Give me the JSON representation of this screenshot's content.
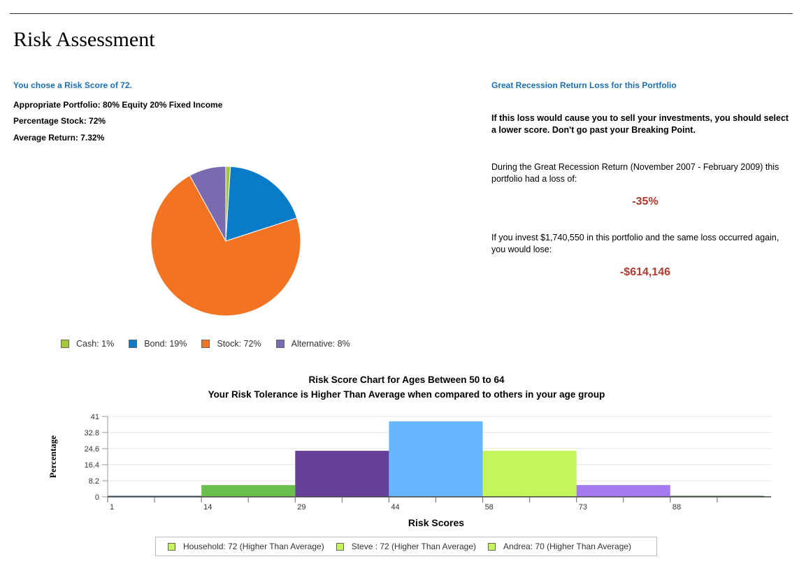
{
  "page": {
    "title": "Risk Assessment"
  },
  "left": {
    "risk_choice": "You chose a Risk Score of 72.",
    "portfolio": "Appropriate Portfolio: 80% Equity 20% Fixed Income",
    "percentage_stock": "Percentage Stock: 72%",
    "average_return": "Average Return: 7.32%"
  },
  "right": {
    "heading": "Great Recession Return Loss for this Portfolio",
    "warning": "If this loss would cause you to sell your investments, you should select a lower score. Don't go past your Breaking Point.",
    "during_text": "During the Great Recession Return (November 2007 - February 2009) this portfolio had a loss of:",
    "loss_percent": "-35%",
    "invest_text": "If you invest $1,740,550 in this portfolio and the same loss occurred again, you would lose:",
    "loss_amount": "-$614,146"
  },
  "allocation": {
    "legend": [
      {
        "label": "Cash: 1%",
        "color": "#a4c639"
      },
      {
        "label": "Bond: 19%",
        "color": "#0a7cc7"
      },
      {
        "label": "Stock: 72%",
        "color": "#f27321"
      },
      {
        "label": "Alternative: 8%",
        "color": "#7a6aaf"
      }
    ]
  },
  "histogram": {
    "title": "Risk Score Chart for Ages Between 50 to 64",
    "subtitle": "Your Risk Tolerance is Higher Than Average when compared to others in your age group",
    "legend": [
      {
        "label": "Household: 72 (Higher Than Average)",
        "color": "#c4f55a"
      },
      {
        "label": "Steve : 72 (Higher Than Average)",
        "color": "#c4f55a"
      },
      {
        "label": "Andrea: 70 (Higher Than Average)",
        "color": "#c4f55a"
      }
    ]
  },
  "chart_data": [
    {
      "type": "pie",
      "categories": [
        "Cash",
        "Bond",
        "Stock",
        "Alternative"
      ],
      "values": [
        1,
        19,
        72,
        8
      ],
      "colors": [
        "#a4c639",
        "#0a7cc7",
        "#f27321",
        "#7a6aaf"
      ],
      "legend_position": "bottom"
    },
    {
      "type": "bar",
      "title": "Risk Score Chart for Ages Between 50 to 64",
      "subtitle": "Your Risk Tolerance is Higher Than Average when compared to others in your age group",
      "xlabel": "Risk Scores",
      "ylabel": "Percentage",
      "x_ticks": [
        "1",
        "14",
        "29",
        "44",
        "58",
        "73",
        "88"
      ],
      "y_ticks": [
        "0",
        "8.2",
        "16.4",
        "24.6",
        "32.8",
        "41"
      ],
      "ylim": [
        0,
        41
      ],
      "bins": [
        {
          "from": 1,
          "to": 14,
          "value": 0.5,
          "color": "#1f4e79"
        },
        {
          "from": 14,
          "to": 29,
          "value": 6,
          "color": "#6cbf4e"
        },
        {
          "from": 29,
          "to": 44,
          "value": 23.5,
          "color": "#66409a"
        },
        {
          "from": 44,
          "to": 58,
          "value": 38.5,
          "color": "#66b5ff"
        },
        {
          "from": 58,
          "to": 73,
          "value": 23.5,
          "color": "#c4f55a"
        },
        {
          "from": 73,
          "to": 88,
          "value": 6,
          "color": "#a57af0"
        },
        {
          "from": 88,
          "to": 101,
          "value": 0.5,
          "color": "#2e6b2e"
        }
      ],
      "grid": true
    }
  ]
}
